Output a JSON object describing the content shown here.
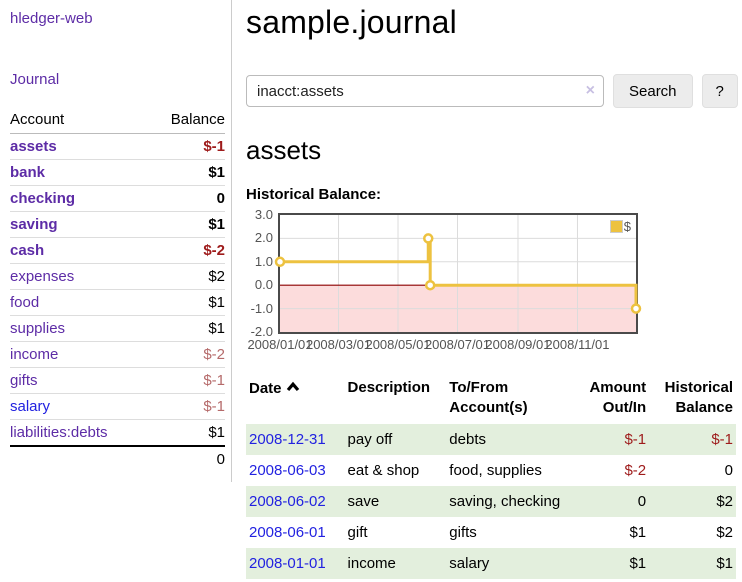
{
  "app": {
    "brand": "hledger-web",
    "nav_journal": "Journal"
  },
  "sidebar": {
    "header": {
      "account": "Account",
      "balance": "Balance"
    },
    "accounts": [
      {
        "name": "assets",
        "balance": "$-1",
        "level": 1,
        "in_query": true,
        "visited": true
      },
      {
        "name": "bank",
        "balance": "$1",
        "level": 2,
        "in_query": true,
        "visited": true
      },
      {
        "name": "checking",
        "balance": "0",
        "level": 3,
        "in_query": true,
        "visited": true
      },
      {
        "name": "saving",
        "balance": "$1",
        "level": 3,
        "in_query": true,
        "visited": true
      },
      {
        "name": "cash",
        "balance": "$-2",
        "level": 2,
        "in_query": true,
        "visited": true
      },
      {
        "name": "expenses",
        "balance": "$2",
        "level": 1,
        "in_query": false,
        "visited": true
      },
      {
        "name": "food",
        "balance": "$1",
        "level": 2,
        "in_query": false,
        "visited": true
      },
      {
        "name": "supplies",
        "balance": "$1",
        "level": 2,
        "in_query": false,
        "visited": true
      },
      {
        "name": "income",
        "balance": "$-2",
        "level": 1,
        "in_query": false,
        "visited": true
      },
      {
        "name": "gifts",
        "balance": "$-1",
        "level": 2,
        "in_query": false,
        "visited": true
      },
      {
        "name": "salary",
        "balance": "$-1",
        "level": 2,
        "in_query": false,
        "visited": false
      },
      {
        "name": "liabilities:debts",
        "balance": "$1",
        "level": 1,
        "in_query": false,
        "visited": true
      }
    ],
    "total": "0"
  },
  "header": {
    "title": "sample.journal"
  },
  "search": {
    "value": "inacct:assets",
    "clear_label": "×",
    "button": "Search",
    "help_button": "?"
  },
  "account_page": {
    "heading": "assets",
    "chart_label": "Historical Balance:"
  },
  "chart_data": {
    "type": "line",
    "title": "Historical Balance:",
    "step": true,
    "series": [
      {
        "name": "$",
        "color": "#edc240",
        "points": [
          {
            "date": "2008-01-01",
            "day": 0,
            "value": 1
          },
          {
            "date": "2008-06-01",
            "day": 152,
            "value": 2
          },
          {
            "date": "2008-06-03",
            "day": 154,
            "value": 0
          },
          {
            "date": "2008-12-31",
            "day": 365,
            "value": -1
          }
        ]
      }
    ],
    "x_ticks": [
      "2008/01/01",
      "2008/03/01",
      "2008/05/01",
      "2008/07/01",
      "2008/09/01",
      "2008/11/01"
    ],
    "x_tick_days": [
      0,
      60,
      121,
      182,
      244,
      305
    ],
    "x_range_days": 365,
    "y_ticks": [
      "3.0",
      "2.0",
      "1.0",
      "0.0",
      "-1.0",
      "-2.0"
    ],
    "ylim": [
      -2,
      3
    ],
    "grid": true,
    "grid_color": "#dcdcdc",
    "negative_region_color": "#fcdcdc",
    "zero_line_color": "#8b0000",
    "border_color": "#4a4a4a",
    "legend": {
      "label": "$",
      "position": "top-right"
    }
  },
  "register": {
    "columns": {
      "date": "Date",
      "description": "Description",
      "accounts_line1": "To/From",
      "accounts_line2": "Account(s)",
      "amount_line1": "Amount",
      "amount_line2": "Out/In",
      "balance_line1": "Historical",
      "balance_line2": "Balance"
    },
    "rows": [
      {
        "date": "2008-12-31",
        "description": "pay off",
        "accounts": "debts",
        "amount": "$-1",
        "balance": "$-1"
      },
      {
        "date": "2008-06-03",
        "description": "eat & shop",
        "accounts": "food, supplies",
        "amount": "$-2",
        "balance": "0"
      },
      {
        "date": "2008-06-02",
        "description": "save",
        "accounts": "saving, checking",
        "amount": "0",
        "balance": "$2"
      },
      {
        "date": "2008-06-01",
        "description": "gift",
        "accounts": "gifts",
        "amount": "$1",
        "balance": "$2"
      },
      {
        "date": "2008-01-01",
        "description": "income",
        "accounts": "salary",
        "amount": "$1",
        "balance": "$1"
      }
    ]
  }
}
